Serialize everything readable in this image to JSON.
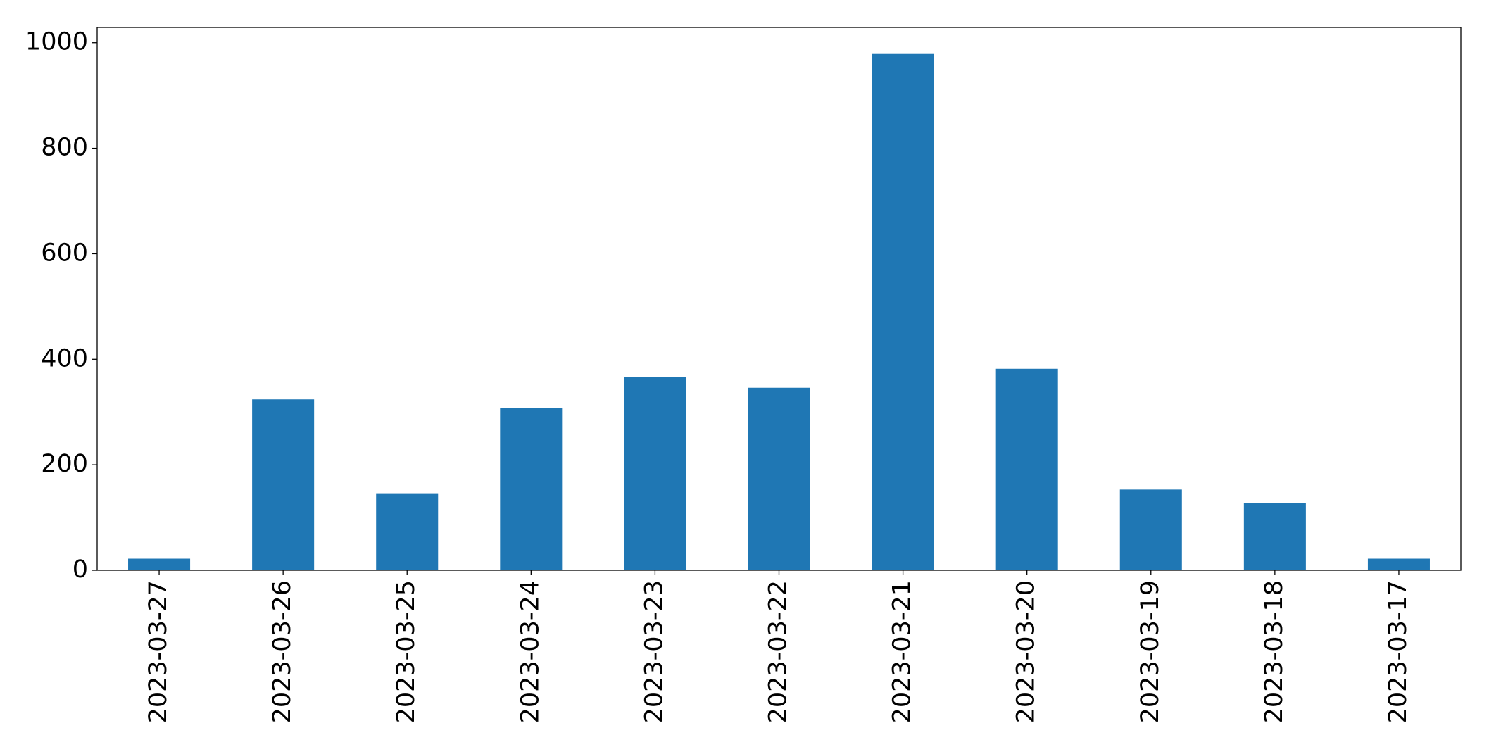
{
  "chart_data": {
    "type": "bar",
    "categories": [
      "2023-03-27",
      "2023-03-26",
      "2023-03-25",
      "2023-03-24",
      "2023-03-23",
      "2023-03-22",
      "2023-03-21",
      "2023-03-20",
      "2023-03-19",
      "2023-03-18",
      "2023-03-17"
    ],
    "values": [
      22,
      324,
      146,
      308,
      366,
      346,
      980,
      382,
      153,
      128,
      22
    ],
    "color": "#1f77b4",
    "ylim": [
      0,
      1029
    ],
    "yticks": [
      0,
      200,
      400,
      600,
      800,
      1000
    ],
    "grid": false
  }
}
